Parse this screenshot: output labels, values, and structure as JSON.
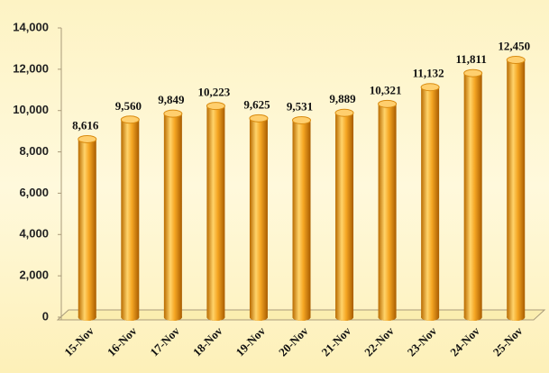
{
  "chart_data": {
    "type": "bar",
    "categories": [
      "15-Nov",
      "16-Nov",
      "17-Nov",
      "18-Nov",
      "19-Nov",
      "20-Nov",
      "21-Nov",
      "22-Nov",
      "23-Nov",
      "24-Nov",
      "25-Nov"
    ],
    "values": [
      8616,
      9560,
      9849,
      10223,
      9625,
      9531,
      9889,
      10321,
      11132,
      11811,
      12450
    ],
    "value_labels": [
      "8,616",
      "9,560",
      "9,849",
      "10,223",
      "9,625",
      "9,531",
      "9,889",
      "10,321",
      "11,132",
      "11,811",
      "12,450"
    ],
    "color": "#f5a623",
    "ylim": [
      0,
      14000
    ],
    "yticks": [
      0,
      {
        "value": 2000,
        "label": "2,000"
      },
      {
        "value": 4000,
        "label": "4,000"
      },
      {
        "value": 6000,
        "label": "6,000"
      },
      {
        "value": 8000,
        "label": "8,000"
      },
      {
        "value": 10000,
        "label": "10,000"
      },
      {
        "value": 12000,
        "label": "12,000"
      },
      {
        "value": 14000,
        "label": "14,000"
      }
    ],
    "grid": false
  }
}
